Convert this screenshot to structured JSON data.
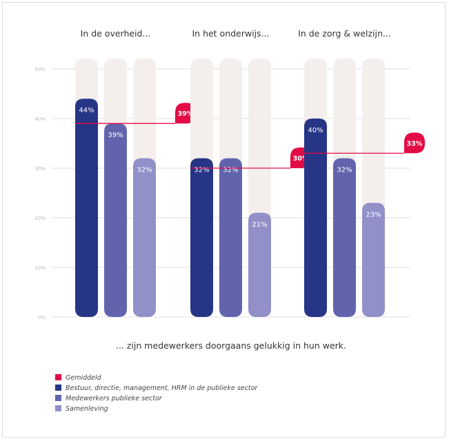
{
  "chart_data": {
    "type": "bar",
    "categories": [
      "In de overheid...",
      "In het onderwijs...",
      "In de zorg & welzijn..."
    ],
    "series": [
      {
        "name": "Bestuur, directie, management, HRM in de publieke sector",
        "values": [
          44,
          32,
          40
        ],
        "labels": [
          "44%",
          "32%",
          "40%"
        ]
      },
      {
        "name": "Medewerkers publieke sector",
        "values": [
          39,
          32,
          32
        ],
        "labels": [
          "39%",
          "32%",
          "32%"
        ]
      },
      {
        "name": "Samenleving",
        "values": [
          32,
          21,
          23
        ],
        "labels": [
          "32%",
          "21%",
          "23%"
        ]
      }
    ],
    "averages": {
      "name": "Gemiddeld",
      "values": [
        39,
        30,
        33
      ],
      "labels": [
        "39%",
        "30%",
        "33%"
      ]
    },
    "ylim": [
      0,
      50
    ],
    "yticks": [
      0,
      10,
      20,
      30,
      40,
      50
    ],
    "ytick_labels": [
      "0%",
      "10%",
      "20%",
      "30%",
      "40%",
      "50%"
    ],
    "caption": "... zijn medewerkers doorgaans gelukkig in hun werk.",
    "grid": true,
    "legend_position": "bottom-left"
  },
  "colors": {
    "series": [
      "#263585",
      "#6164ad",
      "#9290c8"
    ],
    "average": "#e30b45",
    "background_bar": "#f4efec",
    "grid": "#dddddd"
  }
}
